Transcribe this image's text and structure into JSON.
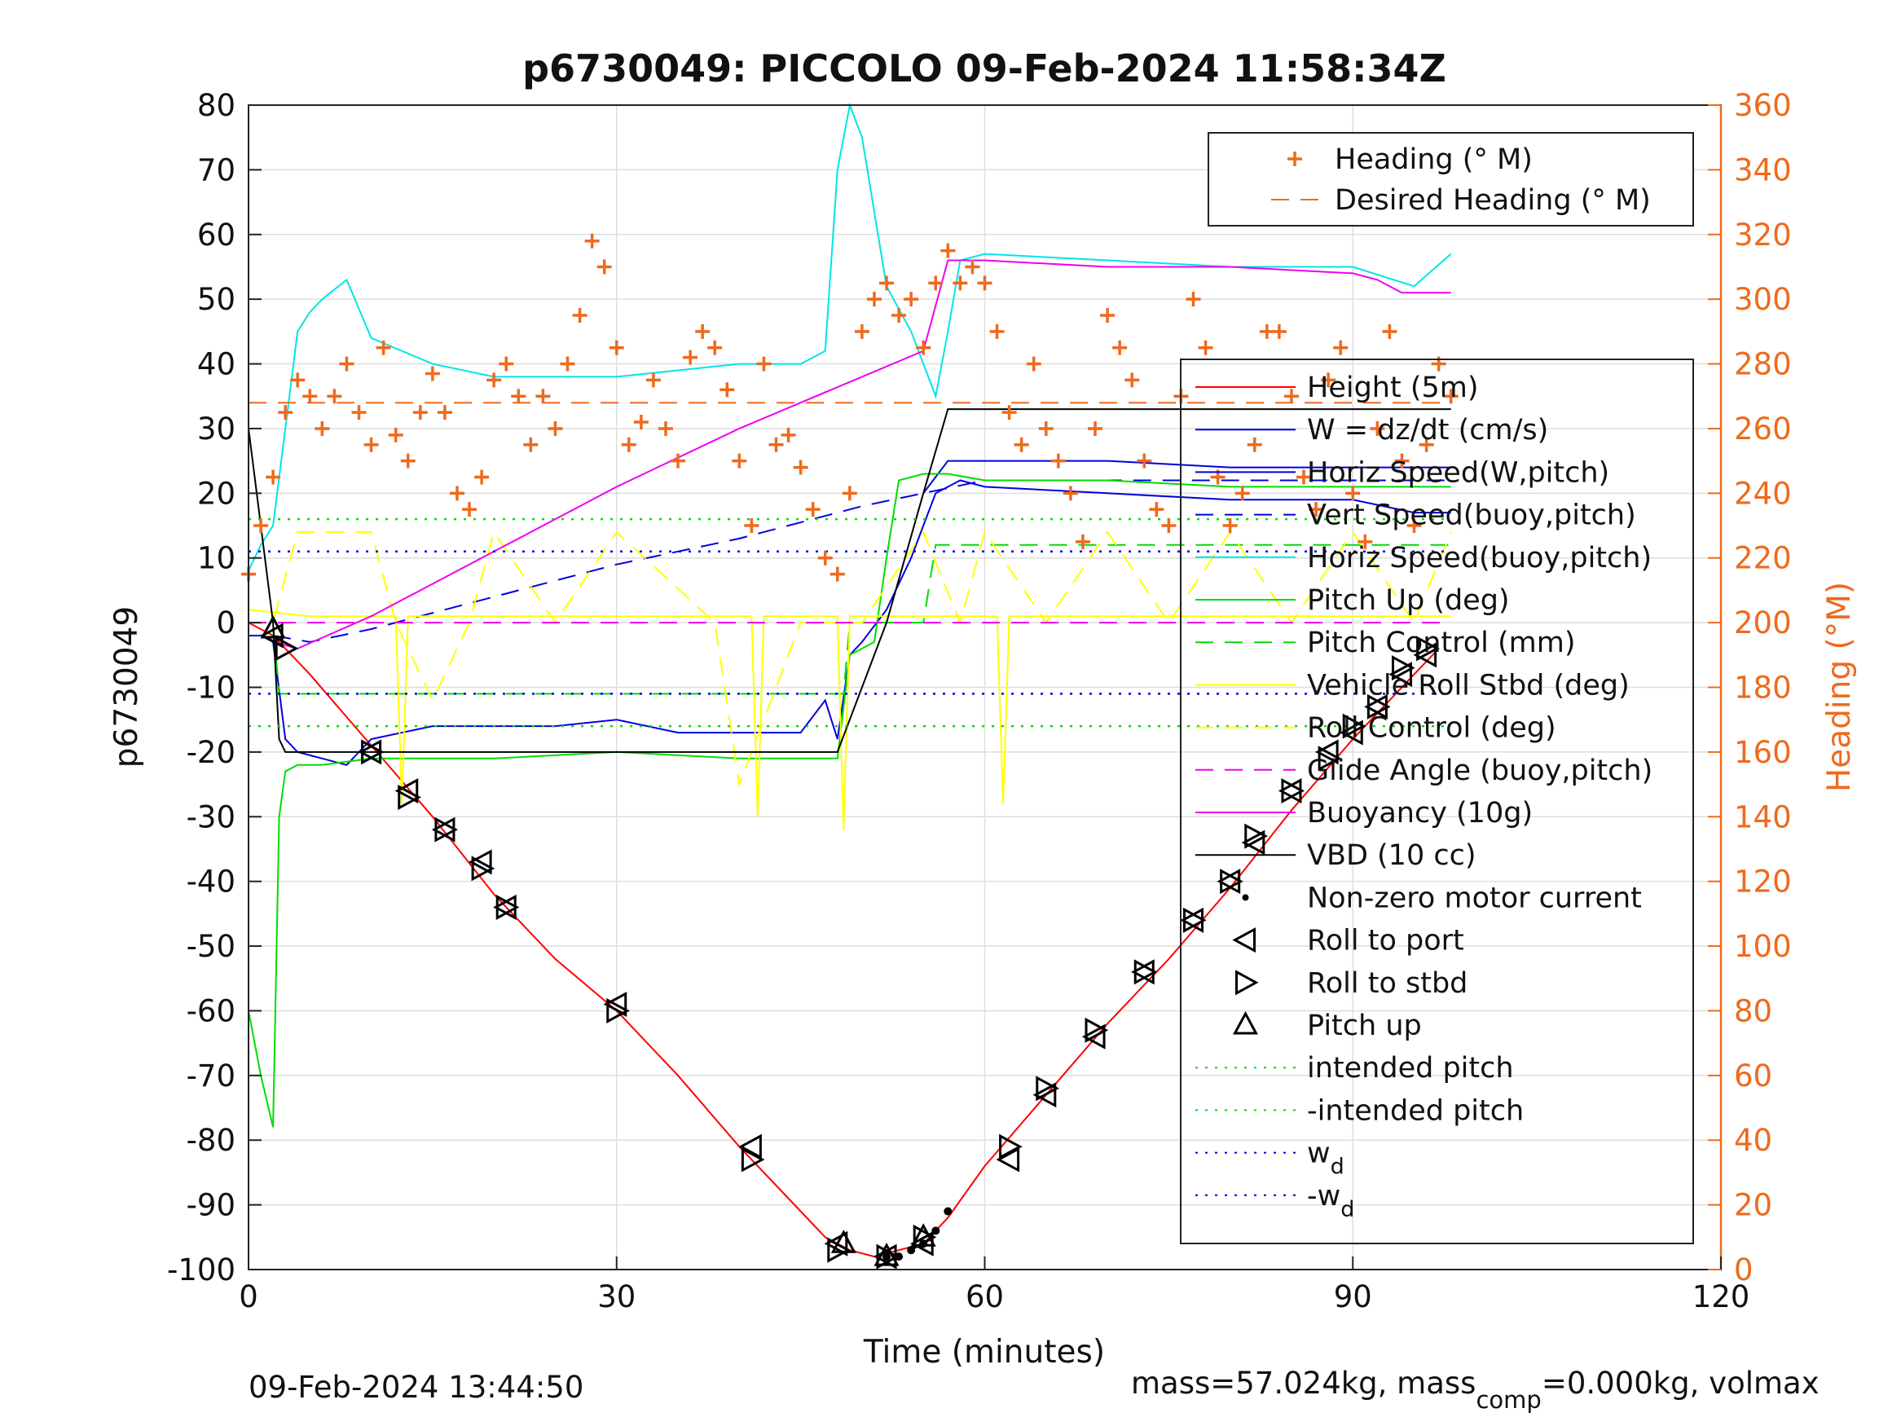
{
  "chart_data": {
    "type": "line",
    "title": "p6730049: PICCOLO 09-Feb-2024 11:58:34Z",
    "xlabel": "Time (minutes)",
    "ylabel": "p6730049",
    "ylabel_right": "Heading (°M)",
    "xlim": [
      0,
      120
    ],
    "ylim": [
      -100,
      80
    ],
    "ylim_right": [
      0,
      360
    ],
    "x_ticks": [
      "0",
      "30",
      "60",
      "90",
      "120"
    ],
    "y_ticks": [
      "80",
      "70",
      "60",
      "50",
      "40",
      "30",
      "20",
      "10",
      "0",
      "-10",
      "-20",
      "-30",
      "-40",
      "-50",
      "-60",
      "-70",
      "-80",
      "-90",
      "-100"
    ],
    "y_ticks_right": [
      "360",
      "340",
      "320",
      "300",
      "280",
      "260",
      "240",
      "220",
      "200",
      "180",
      "160",
      "140",
      "120",
      "100",
      "80",
      "60",
      "40",
      "20",
      "0"
    ],
    "grid": true,
    "legend_top": {
      "placement": "top-right",
      "entries": [
        "Heading (° M)",
        "Desired Heading (° M)"
      ]
    },
    "legend_main": {
      "placement": "right",
      "entries": [
        "Height (5m)",
        "W = dz/dt (cm/s)",
        "Horiz Speed(W,pitch)",
        "Vert Speed(buoy,pitch)",
        "Horiz Speed(buoy,pitch)",
        "Pitch Up (deg)",
        "Pitch Control (mm)",
        "Vehicle Roll Stbd (deg)",
        "Roll Control (deg)",
        "Glide Angle (buoy,pitch)",
        "Buoyancy (10g)",
        "VBD (10 cc)",
        "Non-zero motor current",
        "Roll to port",
        "Roll to stbd",
        "Pitch up",
        "intended pitch",
        "-intended pitch",
        "w",
        "-w"
      ],
      "subscripts": {
        "18": "d",
        "19": "d"
      }
    },
    "series": [
      {
        "name": "Height (5m)",
        "color": "#ff0000",
        "style": "solid",
        "x": [
          0,
          2,
          5,
          10,
          15,
          20,
          25,
          30,
          35,
          40,
          45,
          47,
          49,
          51,
          53,
          55,
          57,
          60,
          65,
          70,
          75,
          80,
          85,
          90,
          95,
          97
        ],
        "y": [
          0,
          -2,
          -8,
          -19,
          -30,
          -42,
          -52,
          -60,
          -70,
          -81,
          -91,
          -95,
          -97,
          -98,
          -97,
          -96,
          -92,
          -84,
          -73,
          -62,
          -52,
          -41,
          -29,
          -18,
          -8,
          -4
        ]
      },
      {
        "name": "W = dz/dt (cm/s)",
        "color": "#0000e0",
        "style": "solid",
        "x": [
          0,
          1,
          2,
          3,
          4,
          6,
          8,
          10,
          15,
          20,
          25,
          30,
          35,
          40,
          45,
          47,
          48,
          49,
          50,
          52,
          54,
          55,
          56,
          58,
          60,
          70,
          80,
          90,
          95,
          98
        ],
        "y": [
          -2,
          -2,
          -3,
          -18,
          -20,
          -21,
          -22,
          -18,
          -16,
          -16,
          -16,
          -15,
          -17,
          -17,
          -17,
          -12,
          -18,
          -5,
          -3,
          2,
          10,
          15,
          20,
          22,
          21,
          20,
          19,
          19,
          17,
          17
        ]
      },
      {
        "name": "Horiz Speed(W,pitch)",
        "color": "#0000e0",
        "style": "solid",
        "x": [
          55,
          57,
          60,
          70,
          80,
          90,
          98
        ],
        "y": [
          20,
          25,
          25,
          25,
          24,
          24,
          24
        ]
      },
      {
        "name": "Vert Speed(buoy,pitch)",
        "color": "#0000e0",
        "style": "dashed",
        "x": [
          2,
          5,
          10,
          20,
          30,
          40,
          50,
          55,
          60,
          70,
          80,
          90,
          98
        ],
        "y": [
          -2,
          -3,
          -1,
          4,
          9,
          13,
          18,
          20,
          22,
          22,
          22,
          22,
          22
        ]
      },
      {
        "name": "Horiz Speed(buoy,pitch)",
        "color": "#00e5e5",
        "style": "solid",
        "x": [
          0,
          1,
          2,
          3,
          4,
          5,
          6,
          8,
          10,
          15,
          20,
          25,
          30,
          35,
          40,
          45,
          47,
          48,
          49,
          50,
          52,
          54,
          56,
          57,
          58,
          60,
          70,
          80,
          90,
          95,
          98
        ],
        "y": [
          8,
          12,
          15,
          30,
          45,
          48,
          50,
          53,
          44,
          40,
          38,
          38,
          38,
          39,
          40,
          40,
          42,
          70,
          80,
          75,
          52,
          45,
          35,
          45,
          56,
          57,
          56,
          55,
          55,
          52,
          57
        ]
      },
      {
        "name": "Pitch Up (deg)",
        "color": "#00dd00",
        "style": "solid",
        "x": [
          0,
          1,
          2,
          2.5,
          3,
          4,
          6,
          10,
          20,
          30,
          40,
          48,
          49,
          50,
          51,
          52,
          53,
          55,
          57,
          60,
          70,
          80,
          90,
          98
        ],
        "y": [
          -60,
          -70,
          -78,
          -30,
          -23,
          -22,
          -22,
          -21,
          -21,
          -20,
          -21,
          -21,
          -5,
          -4,
          -3,
          10,
          22,
          23,
          23,
          22,
          22,
          21,
          21,
          21
        ]
      },
      {
        "name": "Pitch Control (mm)",
        "color": "#00dd00",
        "style": "dashed",
        "x": [
          0,
          2,
          2.5,
          48,
          48.5,
          49,
          55,
          56,
          98
        ],
        "y": [
          0,
          0,
          -11,
          -11,
          -11,
          0,
          0,
          12,
          12
        ]
      },
      {
        "name": "Vehicle Roll Stbd (deg)",
        "color": "#ffff00",
        "style": "solid",
        "x": [
          0,
          5,
          10,
          12,
          12.5,
          13,
          20,
          30,
          40,
          41,
          41.5,
          42,
          48,
          48.5,
          49,
          55,
          60,
          61,
          61.5,
          62,
          70,
          75,
          80,
          90,
          98
        ],
        "y": [
          2,
          1,
          1,
          1,
          -28,
          1,
          1,
          1,
          1,
          1,
          -30,
          1,
          1,
          -32,
          1,
          1,
          1,
          1,
          -28,
          1,
          1,
          1,
          1,
          1,
          1
        ]
      },
      {
        "name": "Roll Control (deg)",
        "color": "#ffff00",
        "style": "dashed",
        "x": [
          0,
          2,
          4,
          10,
          12,
          15,
          18,
          20,
          25,
          30,
          38,
          40,
          45,
          50,
          55,
          58,
          60,
          65,
          70,
          75,
          80,
          85,
          90,
          95,
          98
        ],
        "y": [
          0,
          0,
          14,
          14,
          0,
          -12,
          0,
          14,
          0,
          14,
          0,
          -25,
          0,
          0,
          14,
          0,
          14,
          0,
          14,
          0,
          14,
          0,
          14,
          0,
          14
        ]
      },
      {
        "name": "Glide Angle (buoy,pitch)",
        "color": "#ee00ee",
        "style": "dashed",
        "x": [
          0,
          10,
          20,
          30,
          40,
          50,
          60,
          70,
          80,
          90,
          98
        ],
        "y": [
          0,
          0,
          0,
          0,
          0,
          0,
          0,
          0,
          0,
          0,
          0
        ]
      },
      {
        "name": "Buoyancy (10g)",
        "color": "#ee00ee",
        "style": "solid",
        "x": [
          2,
          4,
          10,
          20,
          30,
          40,
          50,
          55,
          57,
          60,
          70,
          80,
          90,
          92,
          94,
          98
        ],
        "y": [
          -3,
          -4,
          1,
          11,
          21,
          30,
          38,
          42,
          56,
          56,
          55,
          55,
          54,
          53,
          51,
          51
        ]
      },
      {
        "name": "VBD (10 cc)",
        "color": "#000000",
        "style": "solid",
        "x": [
          0,
          1,
          2,
          2.5,
          3,
          10,
          20,
          30,
          40,
          48,
          50,
          52,
          55,
          57,
          60,
          70,
          80,
          90,
          98
        ],
        "y": [
          30,
          15,
          0,
          -18,
          -20,
          -20,
          -20,
          -20,
          -20,
          -20,
          -10,
          0,
          20,
          33,
          33,
          33,
          33,
          33,
          33
        ]
      },
      {
        "name": "intended pitch",
        "color": "#00dd00",
        "style": "dotted",
        "x": [
          0,
          98
        ],
        "y": [
          16,
          16
        ]
      },
      {
        "name": "-intended pitch",
        "color": "#00dd00",
        "style": "dotted",
        "x": [
          0,
          98
        ],
        "y": [
          -16,
          -16
        ]
      },
      {
        "name": "w_d",
        "color": "#0000e0",
        "style": "dotted",
        "x": [
          0,
          98
        ],
        "y": [
          11,
          11
        ]
      },
      {
        "name": "-w_d",
        "color": "#0000e0",
        "style": "dotted",
        "x": [
          0,
          98
        ],
        "y": [
          -11,
          -11
        ]
      },
      {
        "name": "Desired Heading (° M)",
        "color": "#ee6a1c",
        "style": "dashed",
        "axis": "right",
        "x": [
          0,
          5,
          10,
          20,
          30,
          40,
          50,
          60,
          70,
          80,
          90,
          98
        ],
        "y": [
          268,
          268,
          268,
          268,
          268,
          268,
          268,
          268,
          268,
          268,
          268,
          268
        ]
      },
      {
        "name": "Heading (° M)",
        "color": "#ee6a1c",
        "style": "plus",
        "axis": "right",
        "x": [
          0,
          1,
          2,
          3,
          4,
          5,
          6,
          7,
          8,
          9,
          10,
          11,
          12,
          13,
          14,
          15,
          16,
          17,
          18,
          19,
          20,
          21,
          22,
          23,
          24,
          25,
          26,
          27,
          28,
          29,
          30,
          31,
          32,
          33,
          34,
          35,
          36,
          37,
          38,
          39,
          40,
          41,
          42,
          43,
          44,
          45,
          46,
          47,
          48,
          49,
          50,
          51,
          52,
          53,
          54,
          55,
          56,
          57,
          58,
          59,
          60,
          61,
          62,
          63,
          64,
          65,
          66,
          67,
          68,
          69,
          70,
          71,
          72,
          73,
          74,
          75,
          76,
          77,
          78,
          79,
          80,
          81,
          82,
          83,
          84,
          85,
          86,
          87,
          88,
          89,
          90,
          91,
          92,
          93,
          94,
          95,
          96,
          97,
          98
        ],
        "y": [
          215,
          230,
          245,
          265,
          275,
          270,
          260,
          270,
          280,
          265,
          255,
          285,
          258,
          250,
          265,
          277,
          265,
          240,
          235,
          245,
          275,
          280,
          270,
          255,
          270,
          260,
          280,
          295,
          318,
          310,
          285,
          255,
          262,
          275,
          260,
          250,
          282,
          290,
          285,
          272,
          250,
          230,
          280,
          255,
          258,
          248,
          235,
          220,
          215,
          240,
          290,
          300,
          305,
          295,
          300,
          285,
          305,
          315,
          305,
          310,
          305,
          290,
          265,
          255,
          280,
          260,
          250,
          240,
          225,
          260,
          295,
          285,
          275,
          250,
          235,
          230,
          270,
          300,
          285,
          245,
          230,
          240,
          255,
          290,
          290,
          270,
          245,
          235,
          275,
          285,
          240,
          225,
          260,
          290,
          250,
          230,
          255,
          280,
          270
        ]
      }
    ],
    "markers": {
      "roll_to_port": {
        "symbol": "left-triangle",
        "x": [
          2,
          10,
          13,
          16,
          19,
          21,
          30,
          41,
          48,
          52,
          55,
          62,
          65,
          69,
          73,
          77,
          80,
          82,
          85,
          88,
          90,
          92,
          94,
          96
        ],
        "y": [
          -2,
          -20,
          -26,
          -32,
          -37,
          -44,
          -59,
          -81,
          -96,
          -98,
          -96,
          -83,
          -73,
          -64,
          -54,
          -46,
          -40,
          -34,
          -26,
          -20,
          -17,
          -13,
          -8,
          -5
        ]
      },
      "roll_to_stbd": {
        "symbol": "right-triangle",
        "x": [
          3,
          10,
          13,
          16,
          19,
          21,
          30,
          41,
          48,
          52,
          55,
          62,
          65,
          69,
          73,
          77,
          80,
          82,
          85,
          88,
          90,
          92,
          94,
          96
        ],
        "y": [
          -4,
          -20,
          -27,
          -32,
          -38,
          -44,
          -60,
          -83,
          -97,
          -98,
          -95,
          -81,
          -72,
          -63,
          -54,
          -46,
          -40,
          -33,
          -26,
          -21,
          -16,
          -13,
          -7,
          -4
        ]
      },
      "pitch_up": {
        "symbol": "up-triangle",
        "x": [
          2,
          48.5,
          52,
          55
        ],
        "y": [
          -1,
          -96,
          -98,
          -95
        ]
      },
      "motor_current": {
        "symbol": "dot",
        "x": [
          52,
          53,
          54,
          55,
          56,
          57
        ],
        "y": [
          -98,
          -98,
          -97,
          -96,
          -94,
          -91
        ]
      }
    }
  },
  "footer": {
    "timestamp": "09-Feb-2024 13:44:50",
    "mass_text_1": "mass=57.024kg, mass",
    "mass_sub": "comp",
    "mass_text_2": "=0.000kg, volmax"
  }
}
